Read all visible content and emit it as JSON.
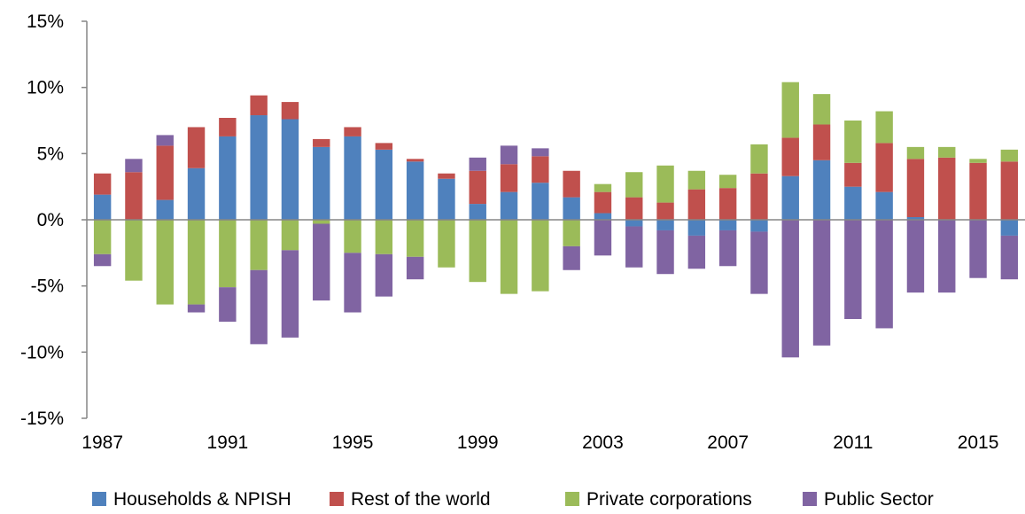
{
  "chart_data": {
    "type": "bar",
    "stacked": true,
    "x": [
      1987,
      1988,
      1989,
      1990,
      1991,
      1992,
      1993,
      1994,
      1995,
      1996,
      1997,
      1998,
      1999,
      2000,
      2001,
      2002,
      2003,
      2004,
      2005,
      2006,
      2007,
      2008,
      2009,
      2010,
      2011,
      2012,
      2013,
      2014,
      2015,
      2016
    ],
    "x_tick_labels": [
      "1987",
      "1991",
      "1995",
      "1999",
      "2003",
      "2007",
      "2011",
      "2015"
    ],
    "y_tick_labels": [
      "15%",
      "10%",
      "5%",
      "0%",
      "-5%",
      "-10%",
      "-15%"
    ],
    "ylim": [
      -15,
      15
    ],
    "yunit": "%",
    "grid": false,
    "legend_position": "bottom",
    "series": [
      {
        "name": "Households & NPISH",
        "color": "#4F81BD",
        "values": [
          1.9,
          0,
          1.5,
          3.9,
          6.3,
          7.9,
          7.6,
          5.5,
          6.3,
          5.3,
          4.4,
          3.1,
          1.2,
          2.1,
          2.8,
          1.7,
          0.5,
          -0.5,
          -0.8,
          -1.2,
          -0.8,
          -0.9,
          3.3,
          4.5,
          2.5,
          2.1,
          0.2,
          0,
          0,
          -1.2
        ]
      },
      {
        "name": "Rest of the world",
        "color": "#C0504D",
        "values": [
          1.6,
          3.6,
          4.1,
          3.1,
          1.4,
          1.5,
          1.3,
          0.6,
          0.7,
          0.5,
          0.2,
          0.4,
          2.5,
          2.1,
          2.0,
          2.0,
          1.6,
          1.7,
          1.3,
          2.3,
          2.4,
          3.5,
          2.9,
          2.7,
          1.8,
          3.7,
          4.4,
          4.7,
          4.3,
          4.4
        ]
      },
      {
        "name": "Private corporations",
        "color": "#9BBB59",
        "values": [
          -2.6,
          -4.6,
          -6.4,
          -6.4,
          -5.1,
          -3.8,
          -2.3,
          -0.3,
          -2.5,
          -2.6,
          -2.8,
          -3.6,
          -4.7,
          -5.6,
          -5.4,
          -2.0,
          0.6,
          1.9,
          2.8,
          1.4,
          1.0,
          2.2,
          4.2,
          2.3,
          3.2,
          2.4,
          0.9,
          0.8,
          0.3,
          0.9
        ]
      },
      {
        "name": "Public Sector",
        "color": "#8064A2",
        "values": [
          -0.9,
          1.0,
          0.8,
          -0.6,
          -2.6,
          -5.6,
          -6.6,
          -5.8,
          -4.5,
          -3.2,
          -1.7,
          0,
          1.0,
          1.4,
          0.6,
          -1.8,
          -2.7,
          -3.1,
          -3.3,
          -2.5,
          -2.7,
          -4.7,
          -10.4,
          -9.5,
          -7.5,
          -8.2,
          -5.5,
          -5.5,
          -4.4,
          -3.3
        ]
      }
    ]
  }
}
